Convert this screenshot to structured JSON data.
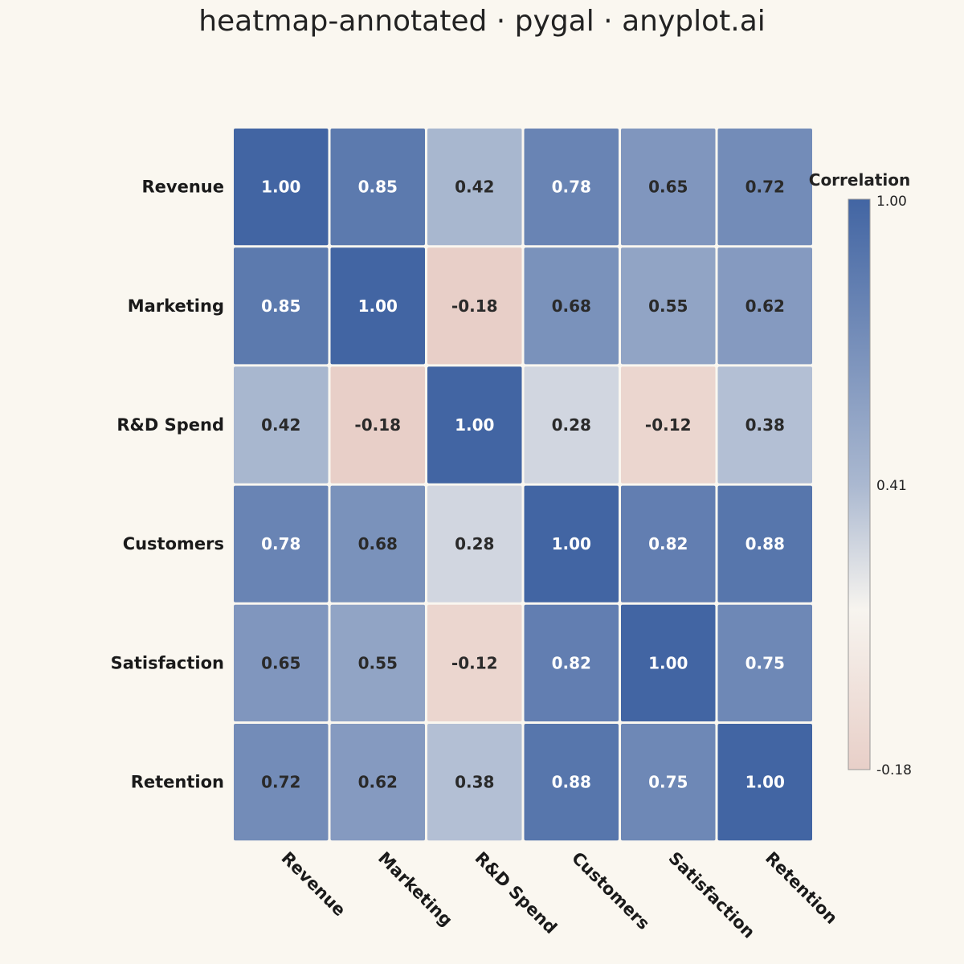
{
  "chart_data": {
    "type": "heatmap",
    "title": "heatmap-annotated · pygal · anyplot.ai",
    "row_labels": [
      "Revenue",
      "Marketing",
      "R&D Spend",
      "Customers",
      "Satisfaction",
      "Retention"
    ],
    "col_labels": [
      "Revenue",
      "Marketing",
      "R&D Spend",
      "Customers",
      "Satisfaction",
      "Retention"
    ],
    "values": [
      [
        1.0,
        0.85,
        0.42,
        0.78,
        0.65,
        0.72
      ],
      [
        0.85,
        1.0,
        -0.18,
        0.68,
        0.55,
        0.62
      ],
      [
        0.42,
        -0.18,
        1.0,
        0.28,
        -0.12,
        0.38
      ],
      [
        0.78,
        0.68,
        0.28,
        1.0,
        0.82,
        0.88
      ],
      [
        0.65,
        0.55,
        -0.12,
        0.82,
        1.0,
        0.75
      ],
      [
        0.72,
        0.62,
        0.38,
        0.88,
        0.75,
        1.0
      ]
    ],
    "value_format": "2 decimals",
    "colorbar": {
      "title": "Correlation",
      "min": -0.18,
      "max": 1.0,
      "tick_labels": [
        "1.00",
        "0.41",
        "-0.18"
      ],
      "color_high": "#4265a3",
      "color_mid": "#f7f4ef",
      "color_low": "#e8cfc8"
    },
    "legend_position": "right"
  }
}
